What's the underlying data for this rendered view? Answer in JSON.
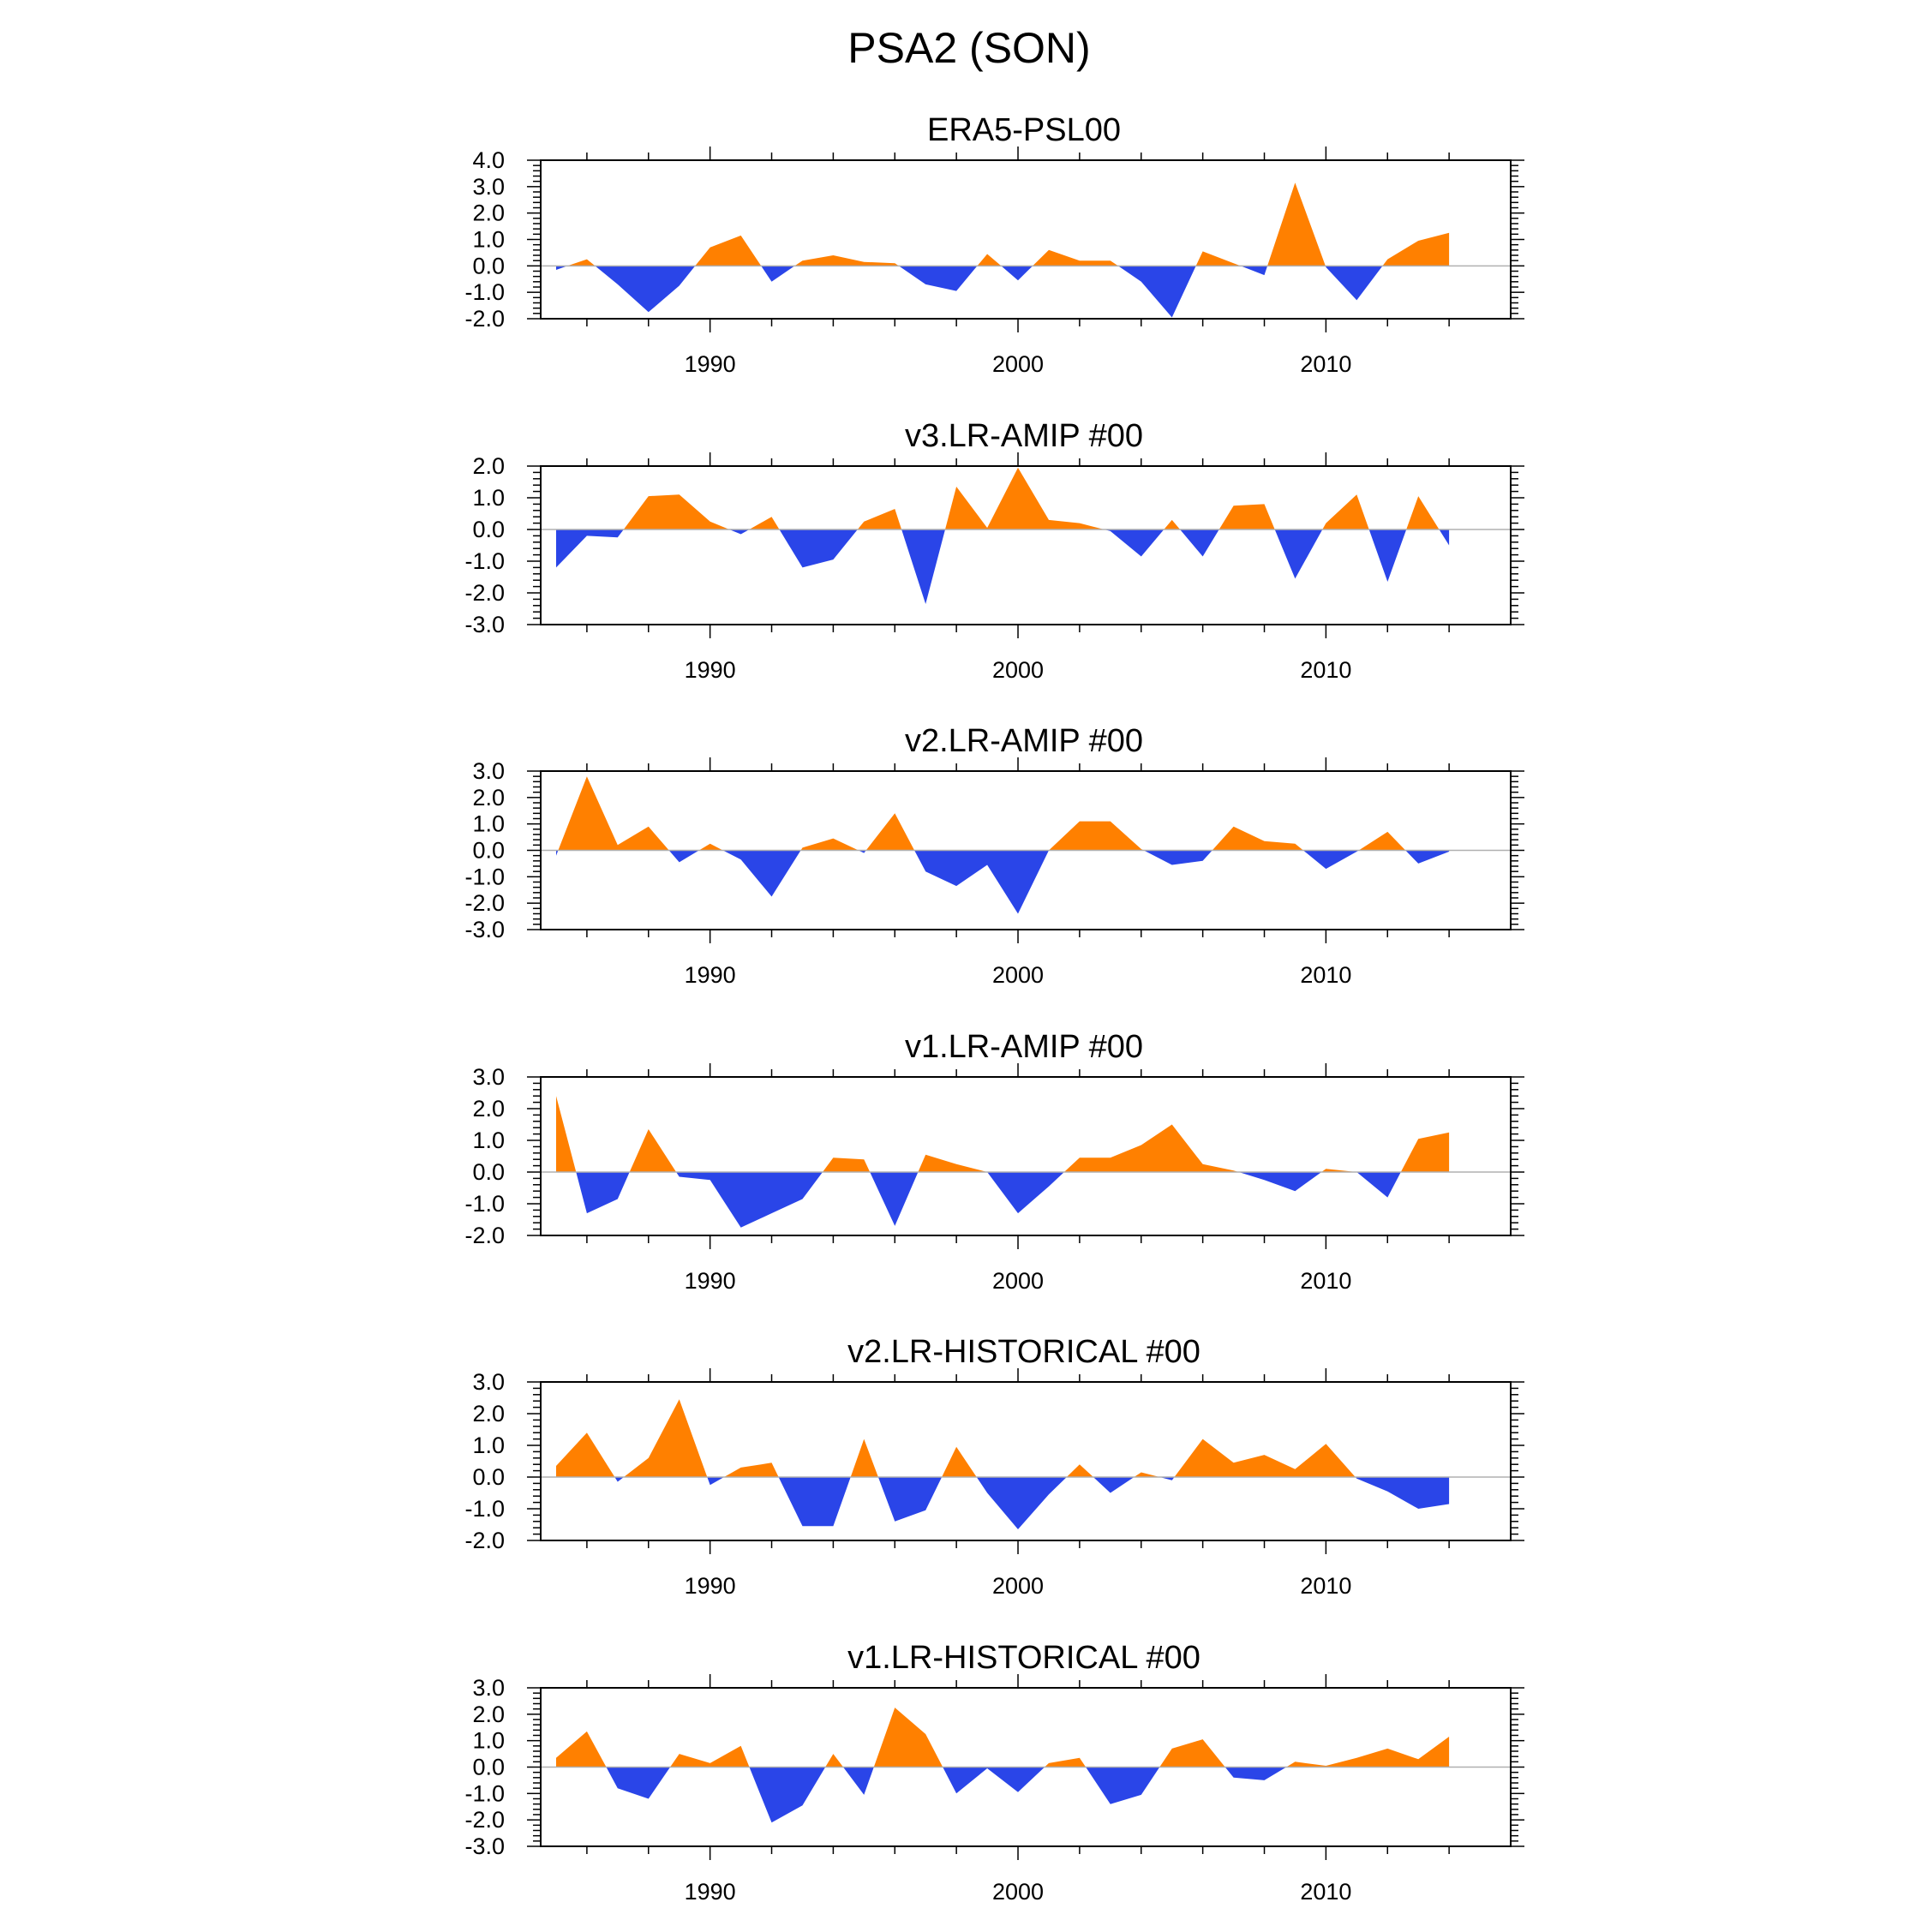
{
  "figure": {
    "title": "PSA2 (SON)",
    "colors": {
      "positive": "#ff8000",
      "negative": "#2a45e8",
      "axis": "#000000",
      "zero_line": "#b0b0b0",
      "background": "#ffffff"
    }
  },
  "chart_data": [
    {
      "type": "area",
      "title": "ERA5-PSL00",
      "x": [
        1985,
        1986,
        1987,
        1988,
        1989,
        1990,
        1991,
        1992,
        1993,
        1994,
        1995,
        1996,
        1997,
        1998,
        1999,
        2000,
        2001,
        2002,
        2003,
        2004,
        2005,
        2006,
        2007,
        2008,
        2009,
        2010,
        2011,
        2012,
        2013,
        2014
      ],
      "values": [
        -0.15,
        0.25,
        -0.7,
        -1.75,
        -0.75,
        0.7,
        1.15,
        -0.6,
        0.2,
        0.4,
        0.15,
        0.1,
        -0.7,
        -0.95,
        0.45,
        -0.55,
        0.6,
        0.2,
        0.2,
        -0.6,
        -1.95,
        0.55,
        0.1,
        -0.35,
        3.15,
        -0.05,
        -1.3,
        0.25,
        0.95,
        1.25
      ],
      "xlim": [
        1984.5,
        2016.0
      ],
      "ylim": [
        -2.0,
        4.0
      ],
      "yticks": [
        -2.0,
        -1.0,
        0.0,
        1.0,
        2.0,
        3.0,
        4.0
      ],
      "ytick_labels": [
        "-2.0",
        "-1.0",
        "0.0",
        "1.0",
        "2.0",
        "3.0",
        "4.0"
      ],
      "xticks": [
        1990,
        2000,
        2010
      ],
      "xtick_labels": [
        "1990",
        "2000",
        "2010"
      ]
    },
    {
      "type": "area",
      "title": "v3.LR-AMIP  #00",
      "x": [
        1985,
        1986,
        1987,
        1988,
        1989,
        1990,
        1991,
        1992,
        1993,
        1994,
        1995,
        1996,
        1997,
        1998,
        1999,
        2000,
        2001,
        2002,
        2003,
        2004,
        2005,
        2006,
        2007,
        2008,
        2009,
        2010,
        2011,
        2012,
        2013,
        2014
      ],
      "values": [
        -1.2,
        -0.2,
        -0.25,
        1.05,
        1.1,
        0.25,
        -0.15,
        0.4,
        -1.2,
        -0.95,
        0.25,
        0.65,
        -2.35,
        1.35,
        0.05,
        1.95,
        0.3,
        0.2,
        -0.05,
        -0.85,
        0.3,
        -0.85,
        0.75,
        0.8,
        -1.55,
        0.2,
        1.1,
        -1.65,
        1.05,
        -0.5
      ],
      "xlim": [
        1984.5,
        2016.0
      ],
      "ylim": [
        -3.0,
        2.0
      ],
      "yticks": [
        -3.0,
        -2.0,
        -1.0,
        0.0,
        1.0,
        2.0
      ],
      "ytick_labels": [
        "-3.0",
        "-2.0",
        "-1.0",
        "0.0",
        "1.0",
        "2.0"
      ],
      "xticks": [
        1990,
        2000,
        2010
      ],
      "xtick_labels": [
        "1990",
        "2000",
        "2010"
      ]
    },
    {
      "type": "area",
      "title": "v2.LR-AMIP  #00",
      "x": [
        1985,
        1986,
        1987,
        1988,
        1989,
        1990,
        1991,
        1992,
        1993,
        1994,
        1995,
        1996,
        1997,
        1998,
        1999,
        2000,
        2001,
        2002,
        2003,
        2004,
        2005,
        2006,
        2007,
        2008,
        2009,
        2010,
        2011,
        2012,
        2013,
        2014
      ],
      "values": [
        -0.2,
        2.8,
        0.2,
        0.9,
        -0.45,
        0.25,
        -0.35,
        -1.75,
        0.1,
        0.45,
        -0.1,
        1.4,
        -0.8,
        -1.35,
        -0.55,
        -2.4,
        0.0,
        1.1,
        1.1,
        0.05,
        -0.55,
        -0.4,
        0.9,
        0.35,
        0.25,
        -0.7,
        -0.05,
        0.7,
        -0.5,
        -0.05
      ],
      "xlim": [
        1984.5,
        2016.0
      ],
      "ylim": [
        -3.0,
        3.0
      ],
      "yticks": [
        -3.0,
        -2.0,
        -1.0,
        0.0,
        1.0,
        2.0,
        3.0
      ],
      "ytick_labels": [
        "-3.0",
        "-2.0",
        "-1.0",
        "0.0",
        "1.0",
        "2.0",
        "3.0"
      ],
      "xticks": [
        1990,
        2000,
        2010
      ],
      "xtick_labels": [
        "1990",
        "2000",
        "2010"
      ]
    },
    {
      "type": "area",
      "title": "v1.LR-AMIP  #00",
      "x": [
        1985,
        1986,
        1987,
        1988,
        1989,
        1990,
        1991,
        1992,
        1993,
        1994,
        1995,
        1996,
        1997,
        1998,
        1999,
        2000,
        2001,
        2002,
        2003,
        2004,
        2005,
        2006,
        2007,
        2008,
        2009,
        2010,
        2011,
        2012,
        2013,
        2014
      ],
      "values": [
        2.4,
        -1.3,
        -0.85,
        1.35,
        -0.15,
        -0.25,
        -1.75,
        -1.3,
        -0.85,
        0.45,
        0.4,
        -1.7,
        0.55,
        0.25,
        0.0,
        -1.3,
        -0.45,
        0.45,
        0.45,
        0.85,
        1.5,
        0.25,
        0.05,
        -0.25,
        -0.6,
        0.1,
        0.0,
        -0.8,
        1.05,
        1.25
      ],
      "xlim": [
        1984.5,
        2016.0
      ],
      "ylim": [
        -2.0,
        3.0
      ],
      "yticks": [
        -2.0,
        -1.0,
        0.0,
        1.0,
        2.0,
        3.0
      ],
      "ytick_labels": [
        "-2.0",
        "-1.0",
        "0.0",
        "1.0",
        "2.0",
        "3.0"
      ],
      "xticks": [
        1990,
        2000,
        2010
      ],
      "xtick_labels": [
        "1990",
        "2000",
        "2010"
      ]
    },
    {
      "type": "area",
      "title": "v2.LR-HISTORICAL  #00",
      "x": [
        1985,
        1986,
        1987,
        1988,
        1989,
        1990,
        1991,
        1992,
        1993,
        1994,
        1995,
        1996,
        1997,
        1998,
        1999,
        2000,
        2001,
        2002,
        2003,
        2004,
        2005,
        2006,
        2007,
        2008,
        2009,
        2010,
        2011,
        2012,
        2013,
        2014
      ],
      "values": [
        0.35,
        1.4,
        -0.15,
        0.6,
        2.45,
        -0.25,
        0.3,
        0.45,
        -1.55,
        -1.55,
        1.2,
        -1.4,
        -1.05,
        0.95,
        -0.5,
        -1.65,
        -0.55,
        0.4,
        -0.5,
        0.15,
        -0.1,
        1.2,
        0.45,
        0.7,
        0.25,
        1.05,
        -0.05,
        -0.45,
        -1.0,
        -0.85
      ],
      "xlim": [
        1984.5,
        2016.0
      ],
      "ylim": [
        -2.0,
        3.0
      ],
      "yticks": [
        -2.0,
        -1.0,
        0.0,
        1.0,
        2.0,
        3.0
      ],
      "ytick_labels": [
        "-2.0",
        "-1.0",
        "0.0",
        "1.0",
        "2.0",
        "3.0"
      ],
      "xticks": [
        1990,
        2000,
        2010
      ],
      "xtick_labels": [
        "1990",
        "2000",
        "2010"
      ]
    },
    {
      "type": "area",
      "title": "v1.LR-HISTORICAL  #00",
      "x": [
        1985,
        1986,
        1987,
        1988,
        1989,
        1990,
        1991,
        1992,
        1993,
        1994,
        1995,
        1996,
        1997,
        1998,
        1999,
        2000,
        2001,
        2002,
        2003,
        2004,
        2005,
        2006,
        2007,
        2008,
        2009,
        2010,
        2011,
        2012,
        2013,
        2014
      ],
      "values": [
        0.35,
        1.35,
        -0.8,
        -1.2,
        0.5,
        0.15,
        0.8,
        -2.1,
        -1.45,
        0.5,
        -1.05,
        2.25,
        1.25,
        -1.0,
        -0.05,
        -0.95,
        0.15,
        0.35,
        -1.4,
        -1.05,
        0.7,
        1.05,
        -0.4,
        -0.5,
        0.2,
        0.05,
        0.35,
        0.7,
        0.3,
        1.15
      ],
      "xlim": [
        1984.5,
        2016.0
      ],
      "ylim": [
        -3.0,
        3.0
      ],
      "yticks": [
        -3.0,
        -2.0,
        -1.0,
        0.0,
        1.0,
        2.0,
        3.0
      ],
      "ytick_labels": [
        "-3.0",
        "-2.0",
        "-1.0",
        "0.0",
        "1.0",
        "2.0",
        "3.0"
      ],
      "xticks": [
        1990,
        2000,
        2010
      ],
      "xtick_labels": [
        "1990",
        "2000",
        "2010"
      ]
    }
  ]
}
